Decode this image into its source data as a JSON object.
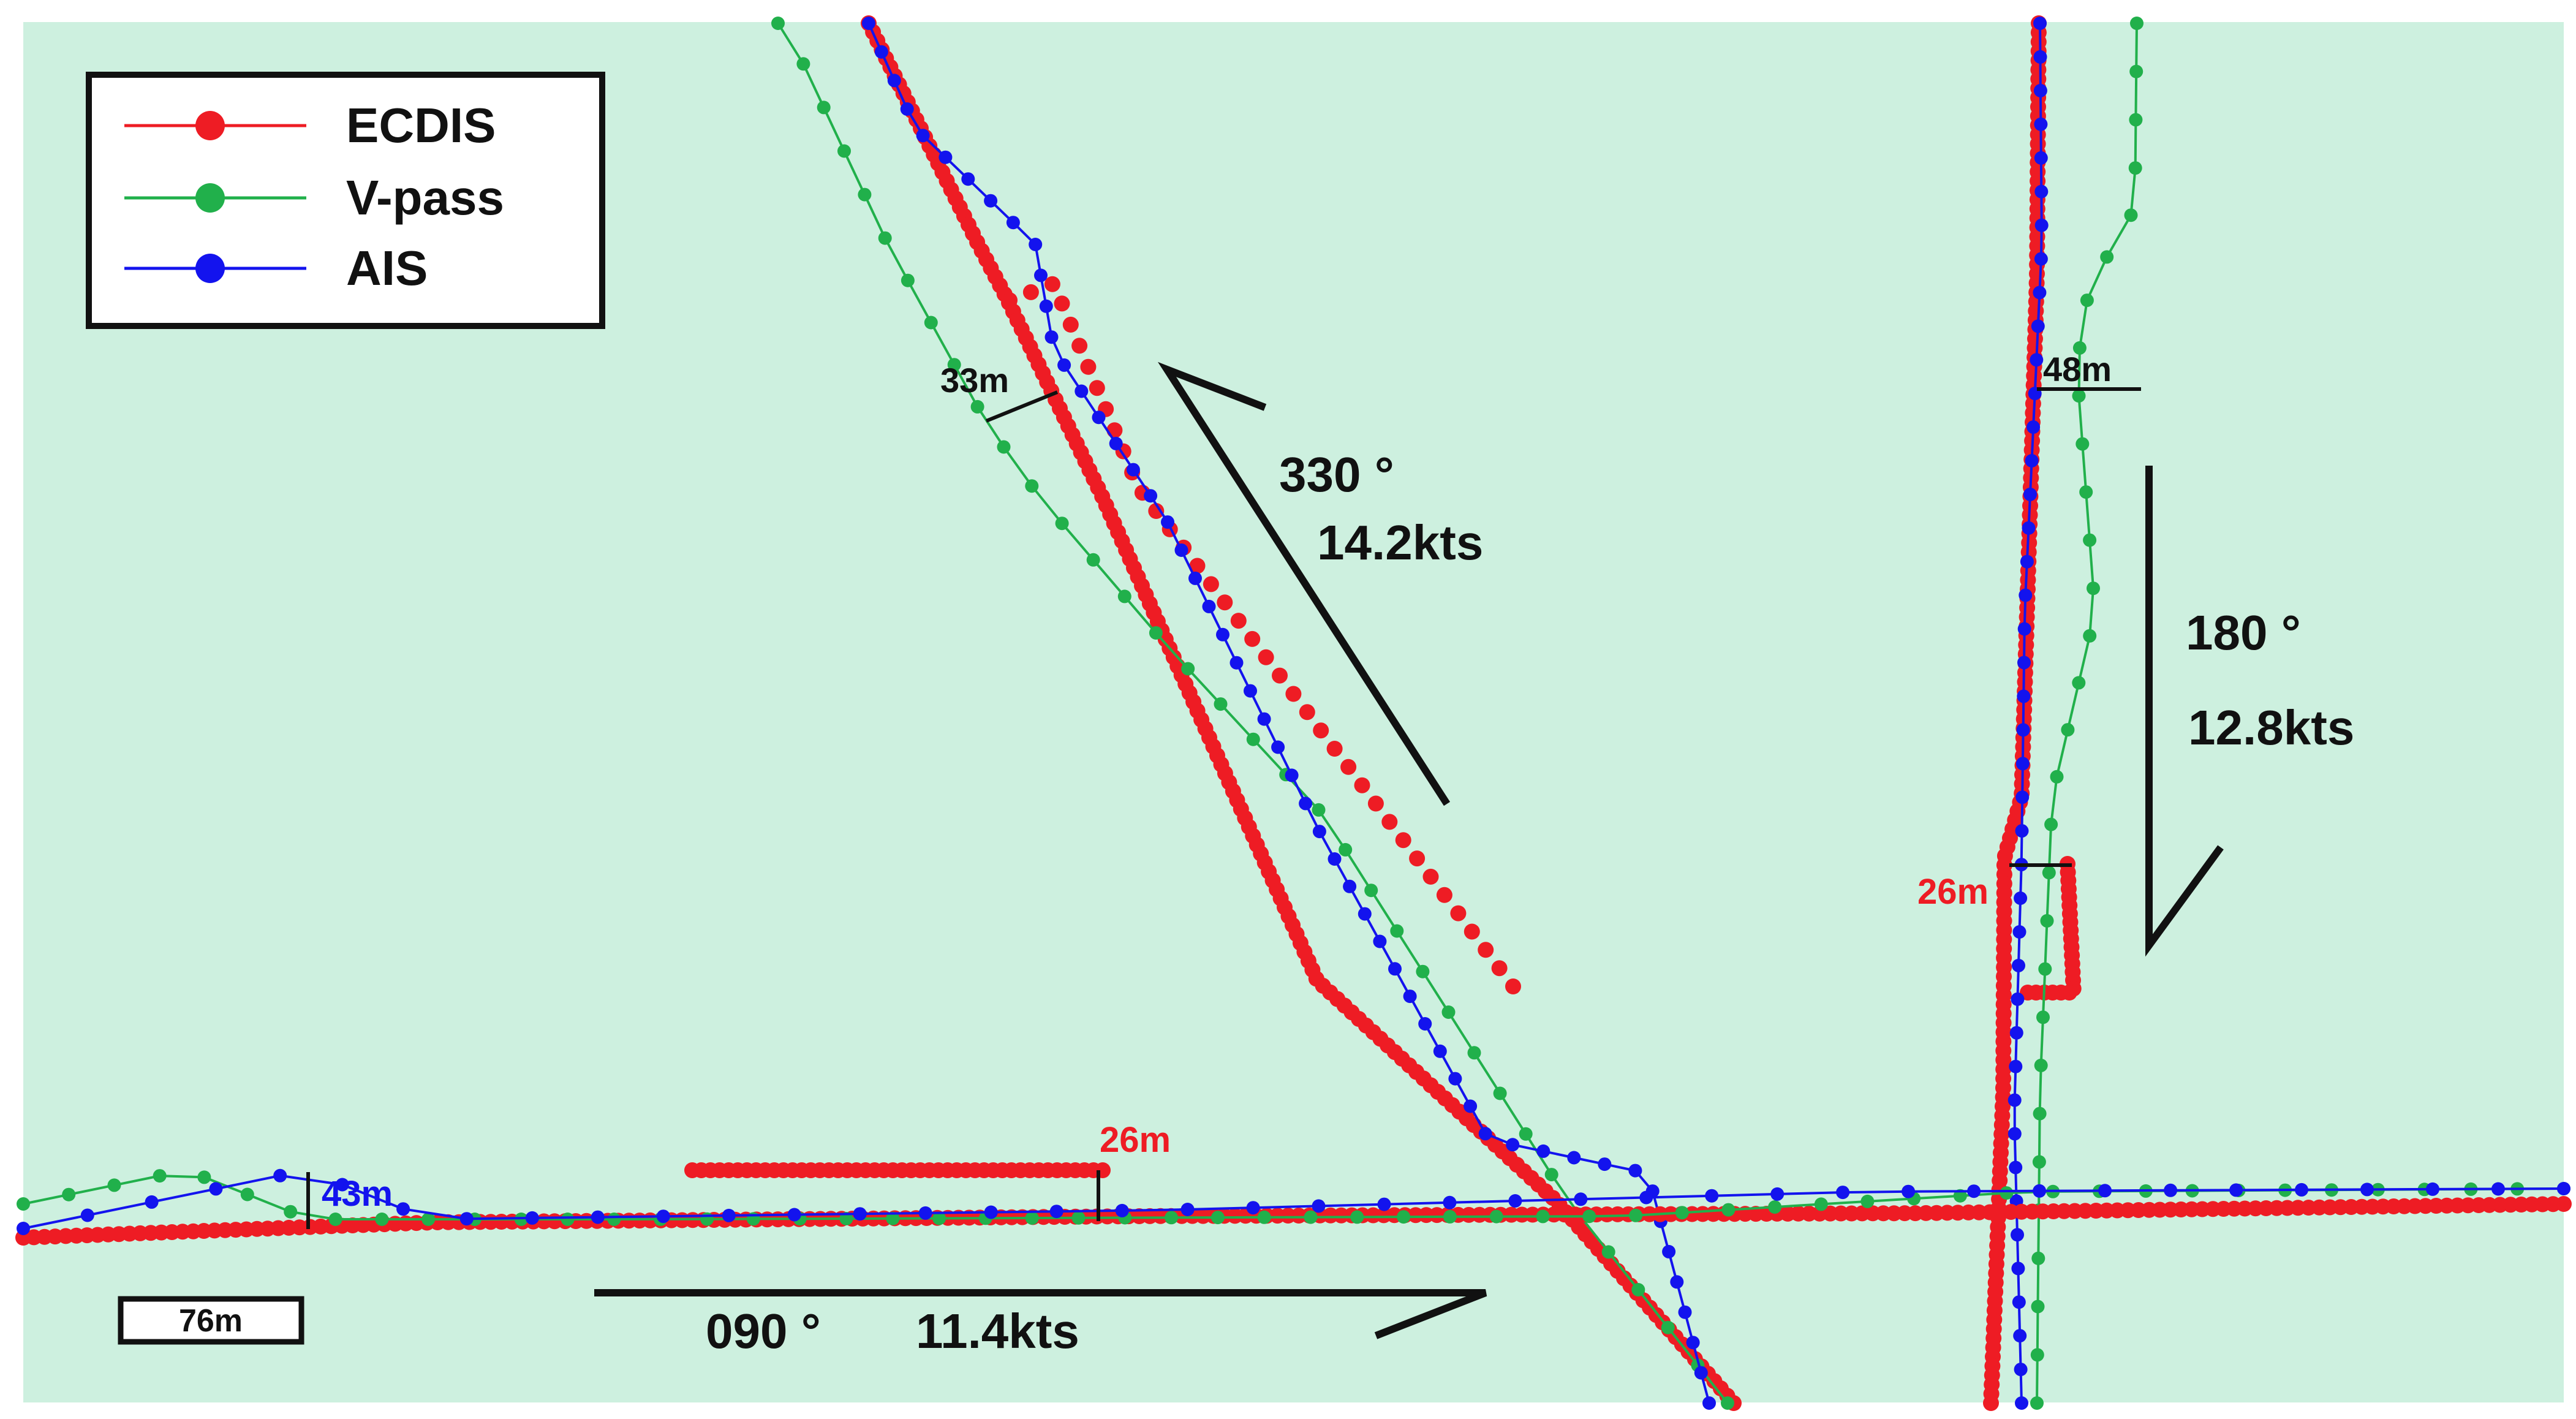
{
  "colors": {
    "background": "#cdf0df",
    "ecdis": "#ee1c24",
    "vpass": "#21b04b",
    "ais": "#1313ee",
    "arrow": "#111111",
    "deviation_red": "#ee1c24",
    "deviation_blue": "#1313ee",
    "deviation_black": "#111111"
  },
  "legend": {
    "position": "top-left",
    "items": [
      {
        "name": "ECDIS",
        "color": "#ee1c24"
      },
      {
        "name": "V-pass",
        "color": "#21b04b"
      },
      {
        "name": "AIS",
        "color": "#1313ee"
      }
    ]
  },
  "scale_bar": {
    "label": "76m"
  },
  "headings": {
    "northwest": {
      "course": "330 °",
      "speed": "14.2kts"
    },
    "south": {
      "course": "180 °",
      "speed": "12.8kts"
    },
    "east": {
      "course": "090 °",
      "speed": "11.4kts"
    }
  },
  "deviations": [
    {
      "label": "33m",
      "color": "#111111"
    },
    {
      "label": "48m",
      "color": "#111111"
    },
    {
      "label": "26m",
      "color": "#ee1c24"
    },
    {
      "label": "26m",
      "color": "#ee1c24"
    },
    {
      "label": "43m",
      "color": "#1313ee"
    }
  ],
  "chart_data": {
    "type": "scatter",
    "title": "",
    "xlabel": "",
    "ylabel": "",
    "grid": false,
    "legend_position": "top-left",
    "series": [
      {
        "name": "ECDIS",
        "color": "#ee1c24",
        "track_count": 3
      },
      {
        "name": "V-pass",
        "color": "#21b04b",
        "track_count": 3
      },
      {
        "name": "AIS",
        "color": "#1313ee",
        "track_count": 3
      }
    ],
    "tracks": [
      {
        "course": "330 °",
        "speed": "14.2kts",
        "max_deviation": "33m"
      },
      {
        "course": "180 °",
        "speed": "12.8kts",
        "max_deviation": "48m"
      },
      {
        "course": "090 °",
        "speed": "11.4kts",
        "max_deviation": "43m"
      }
    ]
  }
}
